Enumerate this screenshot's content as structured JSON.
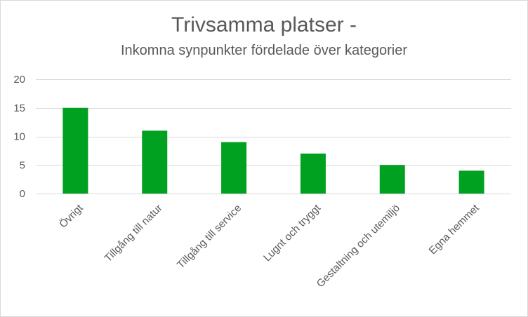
{
  "chart_data": {
    "type": "bar",
    "title": "Trivsamma platser -",
    "subtitle": "Inkomna synpunkter fördelade över kategorier",
    "categories": [
      "Övrigt",
      "Tillgång till natur",
      "Tillgång till service",
      "Lugnt och tryggt",
      "Gestaltning och utemiljö",
      "Egna hemmet"
    ],
    "values": [
      15,
      11,
      9,
      7,
      5,
      4
    ],
    "ylim": [
      0,
      20
    ],
    "yticks": [
      0,
      5,
      10,
      15,
      20
    ],
    "grid": true,
    "bar_color": "#00a020",
    "grid_color": "#d9d9d9",
    "text_color": "#595959"
  }
}
